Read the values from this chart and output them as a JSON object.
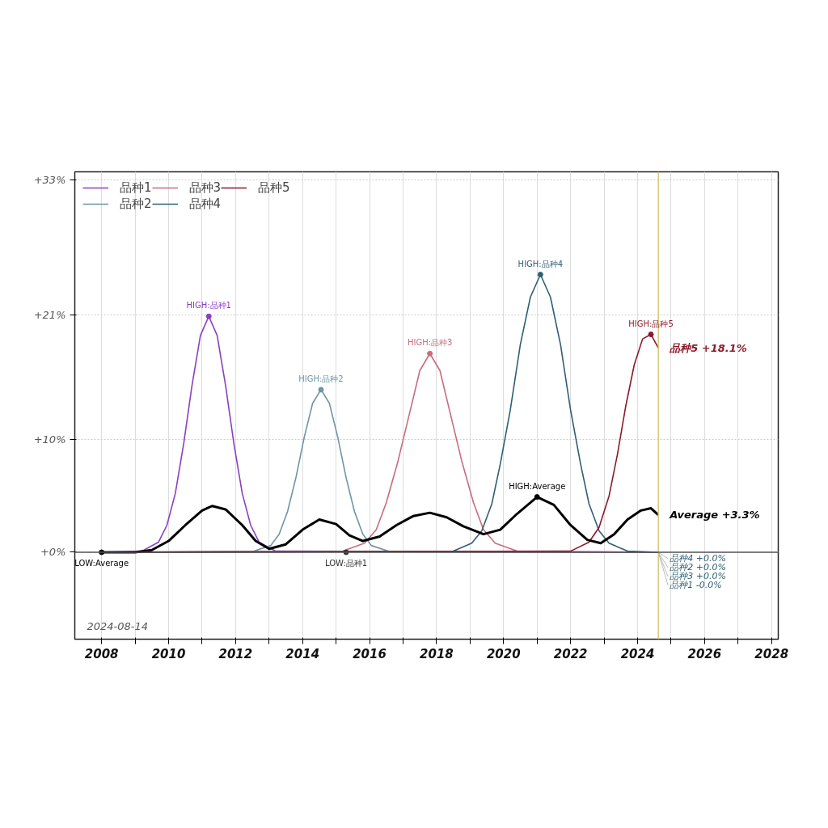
{
  "chart_data": {
    "type": "line",
    "xlim": [
      2007.2,
      2028.2
    ],
    "ylim": [
      -7.7,
      33.7
    ],
    "xticks": [
      2008,
      {
        "value": 2009,
        "label": null
      },
      2010,
      {
        "value": 2011,
        "label": null
      },
      2012,
      {
        "value": 2013,
        "label": null
      },
      2014,
      {
        "value": 2015,
        "label": null
      },
      2016,
      {
        "value": 2017,
        "label": null
      },
      2018,
      {
        "value": 2019,
        "label": null
      },
      2020,
      {
        "value": 2021,
        "label": null
      },
      2022,
      {
        "value": 2023,
        "label": null
      },
      2024,
      {
        "value": 2025,
        "label": null
      },
      2026,
      {
        "value": 2027,
        "label": null
      },
      2028
    ],
    "yticks": [
      {
        "value": 0,
        "label": "+0%"
      },
      {
        "value": 10,
        "label": "+10%"
      },
      {
        "value": 21,
        "label": "+21%"
      },
      {
        "value": 33,
        "label": "+33%"
      }
    ],
    "grid": true,
    "legend": "top left",
    "line_style": "solid",
    "marker": "none",
    "series": [
      {
        "name": "品种1",
        "color": "#8a3fbf",
        "x": [
          2008,
          2009.2,
          2009.7,
          2009.95,
          2010.2,
          2010.45,
          2010.7,
          2010.95,
          2011.2,
          2011.45,
          2011.7,
          2011.95,
          2012.2,
          2012.45,
          2012.7,
          2013.2,
          2024.62
        ],
        "values": [
          0,
          0.1,
          0.9,
          2.4,
          5.2,
          9.6,
          14.8,
          19.2,
          20.9,
          19.2,
          14.8,
          9.6,
          5.2,
          2.4,
          0.9,
          0.1,
          0
        ]
      },
      {
        "name": "品种2",
        "color": "#6f93a8",
        "x": [
          2008,
          2012.55,
          2013.05,
          2013.3,
          2013.55,
          2013.8,
          2014.05,
          2014.3,
          2014.55,
          2014.8,
          2015.05,
          2015.3,
          2015.55,
          2015.8,
          2016.05,
          2016.55,
          2024.62
        ],
        "values": [
          0,
          0.1,
          0.6,
          1.6,
          3.6,
          6.6,
          10.2,
          13.2,
          14.4,
          13.2,
          10.2,
          6.6,
          3.6,
          1.6,
          0.6,
          0.1,
          0
        ]
      },
      {
        "name": "品种3",
        "color": "#c86c7e",
        "x": [
          2008,
          2015.2,
          2015.85,
          2016.2,
          2016.5,
          2016.85,
          2017.2,
          2017.5,
          2017.8,
          2018.1,
          2018.4,
          2018.75,
          2019.1,
          2019.4,
          2019.75,
          2020.4,
          2024.62
        ],
        "values": [
          0,
          0.1,
          0.8,
          2.0,
          4.4,
          8.1,
          12.4,
          16.1,
          17.6,
          16.1,
          12.4,
          8.1,
          4.4,
          2.0,
          0.8,
          0.1,
          0
        ]
      },
      {
        "name": "品种4",
        "color": "#2f5f73",
        "x": [
          2008,
          2018.5,
          2019.05,
          2019.35,
          2019.65,
          2019.9,
          2020.2,
          2020.5,
          2020.8,
          2021.1,
          2021.4,
          2021.7,
          2022.0,
          2022.3,
          2022.55,
          2022.85,
          2023.15,
          2023.7,
          2024.62
        ],
        "values": [
          0,
          0.1,
          0.8,
          1.9,
          4.3,
          7.8,
          12.6,
          18.4,
          22.6,
          24.6,
          22.6,
          18.4,
          12.6,
          7.8,
          4.3,
          1.9,
          0.8,
          0.1,
          0
        ]
      },
      {
        "name": "品种5",
        "color": "#8b1a2b",
        "x": [
          2008,
          2022.0,
          2022.55,
          2022.85,
          2023.15,
          2023.4,
          2023.65,
          2023.9,
          2024.15,
          2024.4,
          2024.62
        ],
        "values": [
          0,
          0.1,
          0.9,
          2.2,
          5.0,
          8.7,
          13.0,
          16.6,
          18.9,
          19.3,
          18.1
        ]
      },
      {
        "color": "#000000",
        "x": [
          2008,
          2009,
          2009.5,
          2010,
          2010.5,
          2011,
          2011.3,
          2011.7,
          2012.2,
          2012.6,
          2013,
          2013.5,
          2014,
          2014.5,
          2015,
          2015.4,
          2015.8,
          2016.3,
          2016.8,
          2017.3,
          2017.8,
          2018.3,
          2018.8,
          2019.4,
          2019.9,
          2020.4,
          2021,
          2021.5,
          2022,
          2022.5,
          2022.9,
          2023.3,
          2023.7,
          2024.1,
          2024.4,
          2024.62
        ],
        "values": [
          0,
          0,
          0.2,
          1.0,
          2.4,
          3.7,
          4.1,
          3.8,
          2.4,
          1.0,
          0.3,
          0.7,
          2.0,
          2.9,
          2.5,
          1.5,
          1.0,
          1.4,
          2.4,
          3.2,
          3.5,
          3.1,
          2.3,
          1.6,
          2.0,
          3.4,
          4.9,
          4.2,
          2.4,
          1.1,
          0.8,
          1.6,
          2.9,
          3.7,
          3.9,
          3.3
        ]
      }
    ],
    "ref_lines": [
      {
        "axis": "x",
        "value": 2024.62,
        "label": null,
        "color": "#d4c87a"
      },
      {
        "axis": "y",
        "value": 0,
        "label": null,
        "color": "#555555"
      }
    ],
    "annotations": [
      {
        "text": "HIGH:品种1",
        "x": 2011.2,
        "y": 20.9
      },
      {
        "text": "HIGH:品种2",
        "x": 2014.55,
        "y": 14.4
      },
      {
        "text": "HIGH:品种3",
        "x": 2017.8,
        "y": 17.6
      },
      {
        "text": "HIGH:品种4",
        "x": 2021.1,
        "y": 24.6
      },
      {
        "text": "HIGH:品种5",
        "x": 2024.4,
        "y": 19.3
      },
      {
        "text": "HIGH:Average",
        "x": 2021.0,
        "y": 4.9
      },
      {
        "text": "LOW:品种1",
        "x": 2015.3,
        "y": 0
      },
      {
        "text": "LOW:Average",
        "x": 2008,
        "y": 0
      },
      {
        "text": "品种5 +18.1%",
        "x": 2024.62,
        "y": 18.1
      },
      {
        "text": "Average +3.3%",
        "x": 2024.62,
        "y": 3.3
      },
      {
        "text": "品种4 +0.0%",
        "x": 2024.62,
        "y": 0
      },
      {
        "text": "品种2 +0.0%",
        "x": 2024.62,
        "y": 0
      },
      {
        "text": "品种3 +0.0%",
        "x": 2024.62,
        "y": 0
      },
      {
        "text": "品种1 -0.0%",
        "x": 2024.62,
        "y": 0
      },
      "2024-08-14"
    ]
  }
}
